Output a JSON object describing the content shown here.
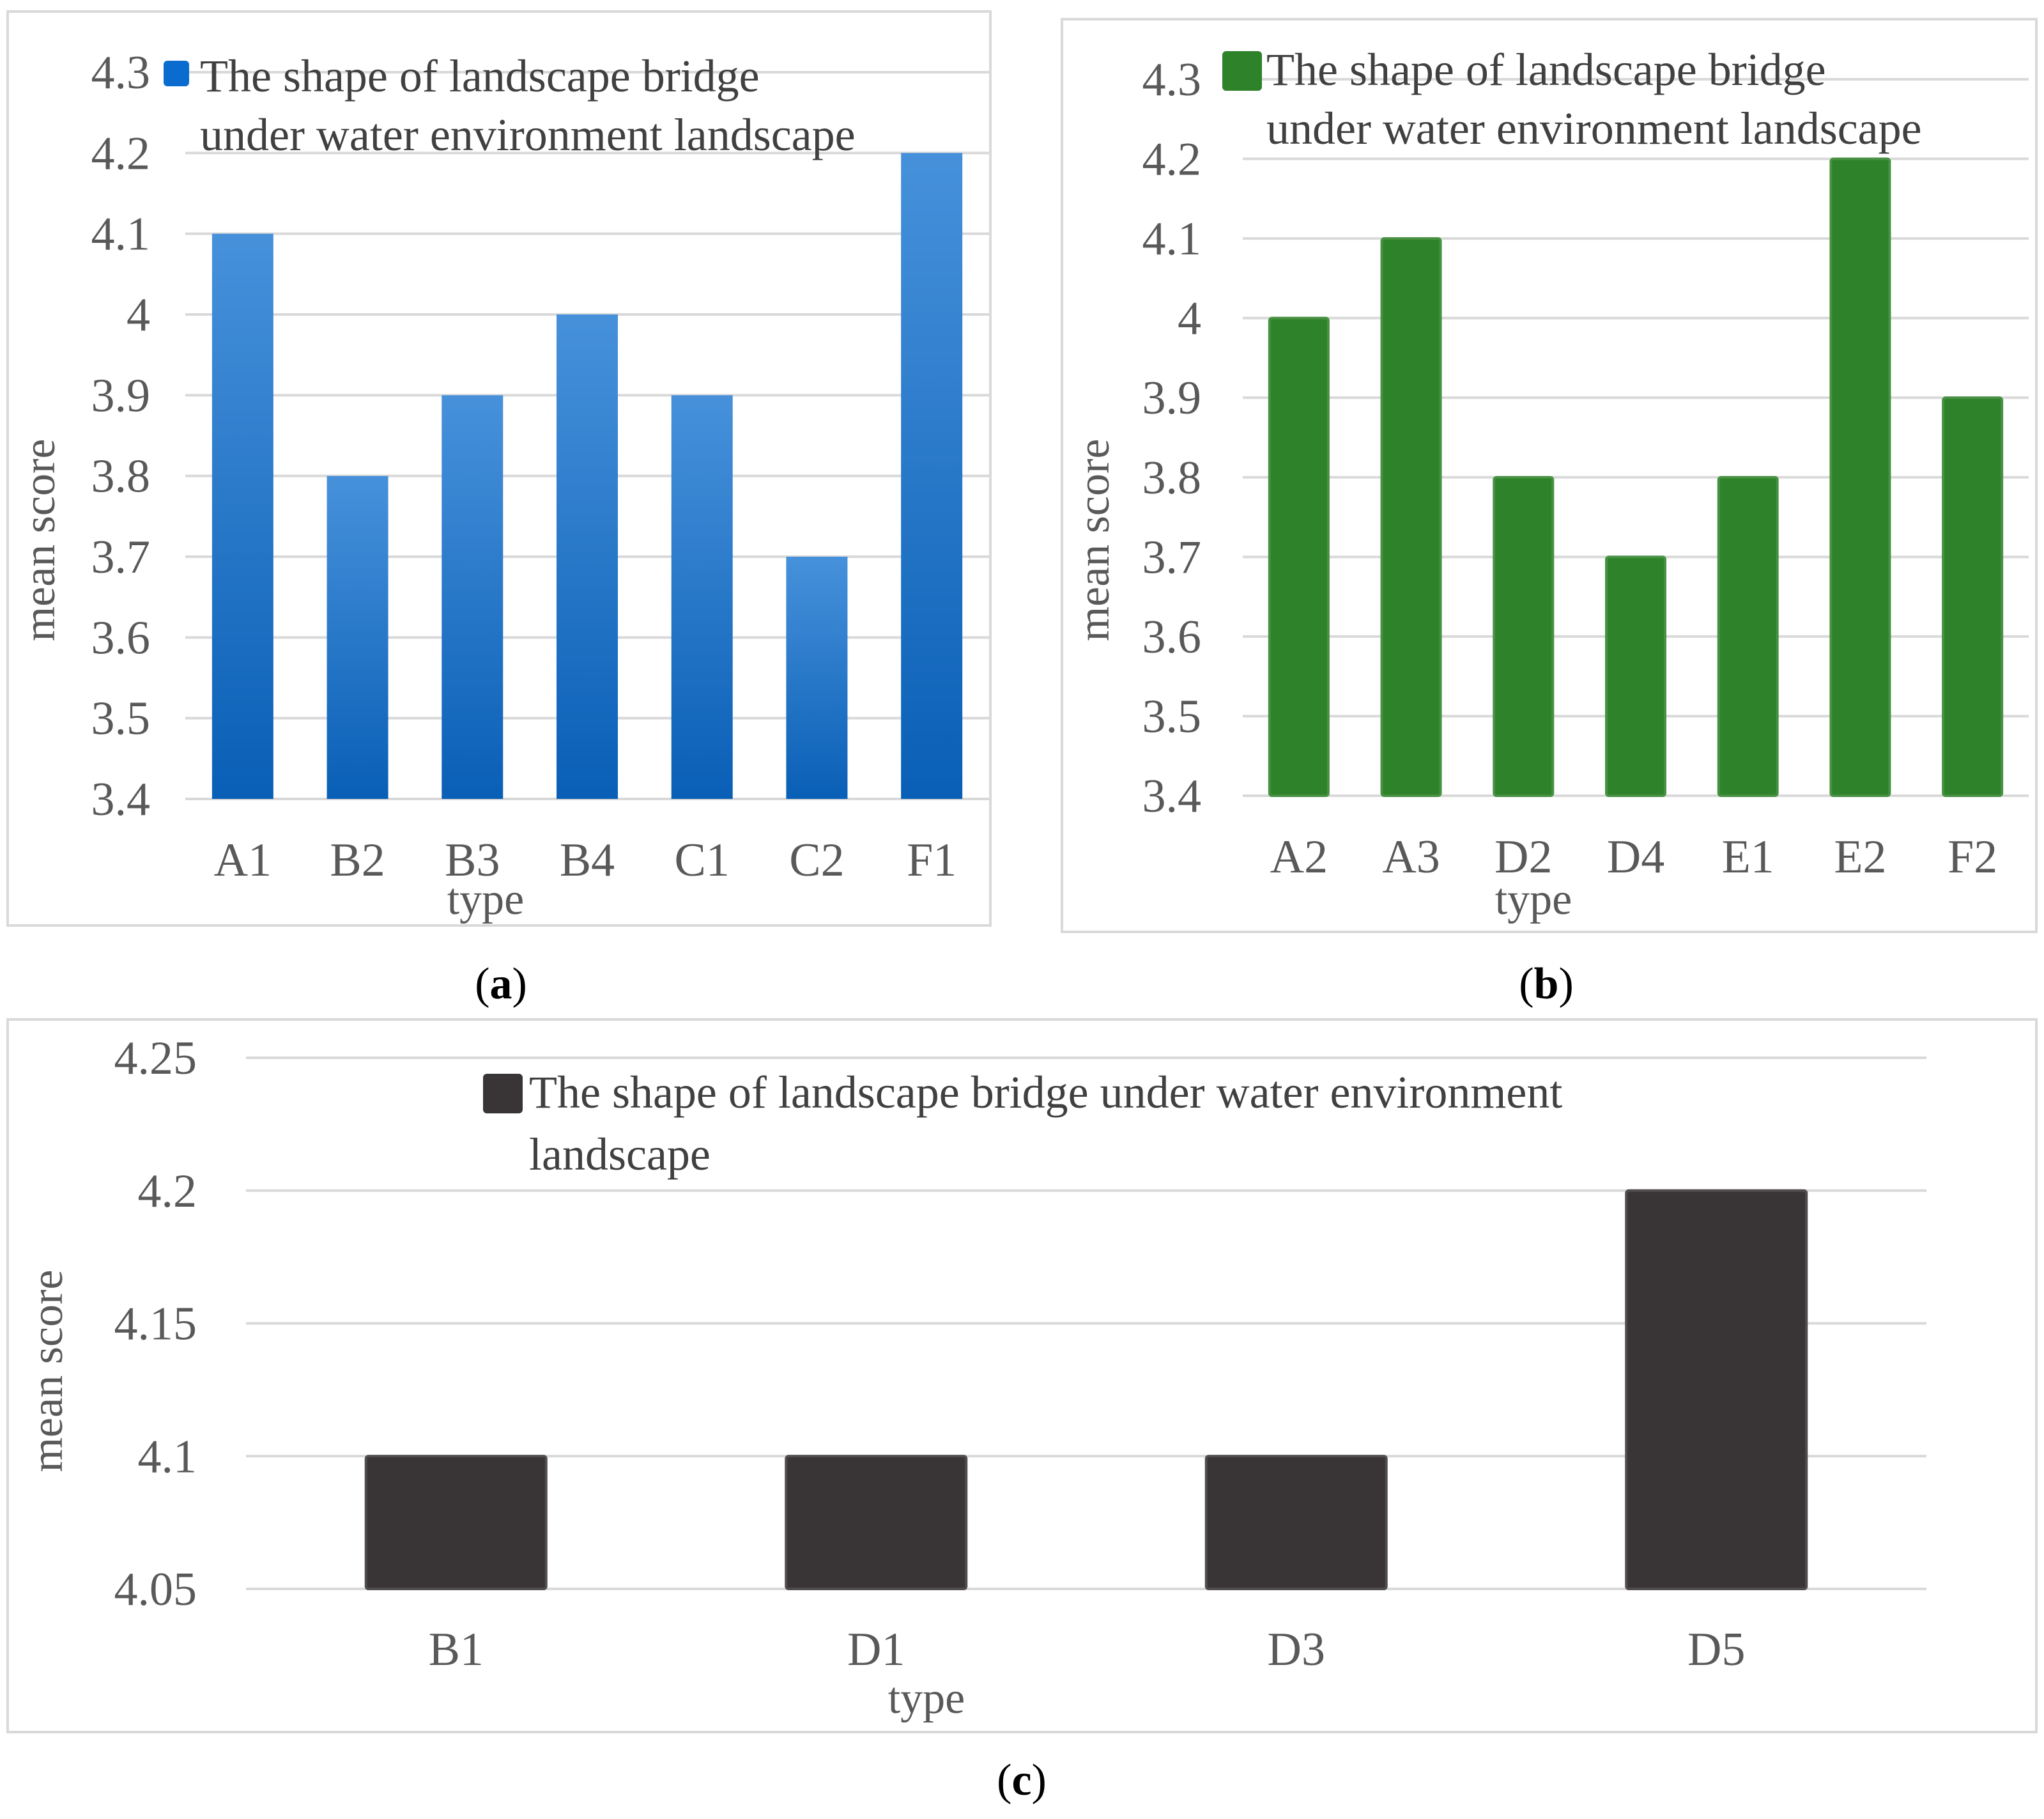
{
  "figure": {
    "panels": [
      {
        "label_open": "(",
        "label_letter": "a",
        "label_close": ")"
      },
      {
        "label_open": "(",
        "label_letter": "b",
        "label_close": ")"
      },
      {
        "label_open": "(",
        "label_letter": "c",
        "label_close": ")"
      }
    ]
  },
  "chart_data": [
    {
      "type": "bar",
      "panel": "a",
      "categories": [
        "A1",
        "B2",
        "B3",
        "B4",
        "C1",
        "C2",
        "F1"
      ],
      "series": [
        {
          "name": "The shape of landscape bridge under water environment landscape",
          "values": [
            4.1,
            3.8,
            3.9,
            4.0,
            3.9,
            3.7,
            4.2
          ]
        }
      ],
      "legend_lines": [
        "The shape of landscape bridge",
        "under water environment landscape"
      ],
      "xlabel": "type",
      "ylabel": "mean score",
      "ylim": [
        3.4,
        4.3
      ],
      "yticks": [
        "3.4",
        "3.5",
        "3.6",
        "3.7",
        "3.8",
        "3.9",
        "4",
        "4.1",
        "4.2",
        "4.3"
      ],
      "color": "#0a6ccf",
      "grid": true,
      "legend_position": "top-left"
    },
    {
      "type": "bar",
      "panel": "b",
      "categories": [
        "A2",
        "A3",
        "D2",
        "D4",
        "E1",
        "E2",
        "F2"
      ],
      "series": [
        {
          "name": "The shape of landscape bridge under water environment landscape",
          "values": [
            4.0,
            4.1,
            3.8,
            3.7,
            3.8,
            4.2,
            3.9
          ]
        }
      ],
      "legend_lines": [
        "The shape of landscape bridge",
        "under water environment landscape"
      ],
      "xlabel": "type",
      "ylabel": "mean score",
      "ylim": [
        3.4,
        4.3
      ],
      "yticks": [
        "3.4",
        "3.5",
        "3.6",
        "3.7",
        "3.8",
        "3.9",
        "4",
        "4.1",
        "4.2",
        "4.3"
      ],
      "color": "#2e8229",
      "grid": true,
      "legend_position": "top-left"
    },
    {
      "type": "bar",
      "panel": "c",
      "categories": [
        "B1",
        "D1",
        "D3",
        "D5"
      ],
      "series": [
        {
          "name": "The shape of landscape bridge under water environment landscape",
          "values": [
            4.1,
            4.1,
            4.1,
            4.2
          ]
        }
      ],
      "legend_lines": [
        "The shape of landscape bridge under water environment",
        "landscape"
      ],
      "xlabel": "type",
      "ylabel": "mean score",
      "ylim": [
        4.05,
        4.25
      ],
      "yticks": [
        "4.05",
        "4.1",
        "4.15",
        "4.2",
        "4.25"
      ],
      "color": "#393536",
      "grid": true,
      "legend_position": "top-center"
    }
  ]
}
